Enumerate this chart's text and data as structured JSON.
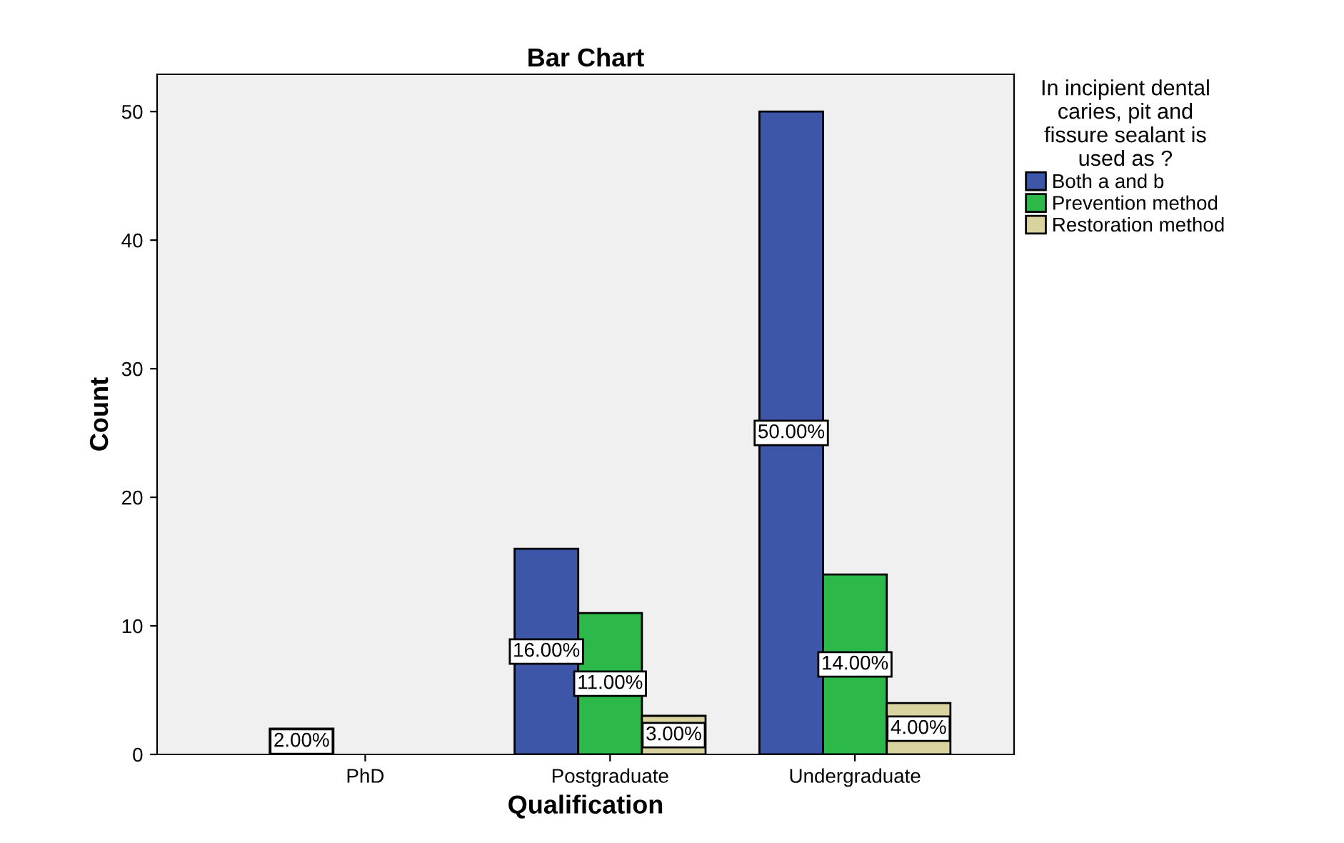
{
  "chart_data": {
    "type": "bar",
    "title": "Bar Chart",
    "xlabel": "Qualification",
    "ylabel": "Count",
    "legend_title": "In incipient dental\ncaries, pit and\nfissure sealant is\nused as ?",
    "categories": [
      "PhD",
      "Postgraduate",
      "Undergraduate"
    ],
    "series": [
      {
        "name": "Both a and b",
        "color": "#3d56a8",
        "values": [
          2,
          16,
          50
        ],
        "value_labels": [
          "2.00%",
          "16.00%",
          "50.00%"
        ]
      },
      {
        "name": "Prevention method",
        "color": "#2db84a",
        "values": [
          null,
          11,
          14
        ],
        "value_labels": [
          null,
          "11.00%",
          "14.00%"
        ]
      },
      {
        "name": "Restoration method",
        "color": "#d9d3a0",
        "values": [
          null,
          3,
          4
        ],
        "value_labels": [
          null,
          "3.00%",
          "4.00%"
        ]
      }
    ],
    "ylim": [
      0,
      52.9
    ],
    "yticks": [
      0,
      10,
      20,
      30,
      40,
      50
    ],
    "grid": false,
    "legend": "right"
  }
}
